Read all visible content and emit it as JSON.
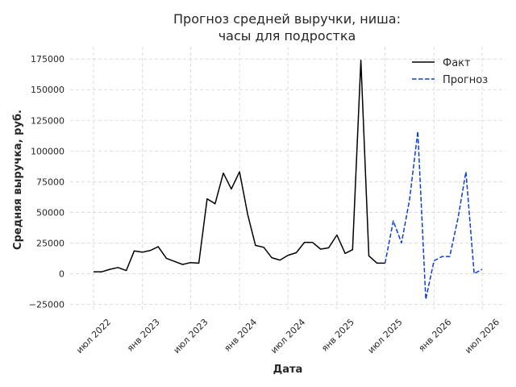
{
  "chart_data": {
    "type": "line",
    "title_lines": [
      "Прогноз средней выручки, ниша:",
      "часы для подростка"
    ],
    "xlabel": "Дата",
    "ylabel": "Средняя выручка, руб.",
    "ylim": [
      -30000,
      185000
    ],
    "y_ticks": [
      -25000,
      0,
      25000,
      50000,
      75000,
      100000,
      125000,
      150000,
      175000
    ],
    "y_tick_labels": [
      "−25000",
      "0",
      "25000",
      "50000",
      "75000",
      "100000",
      "125000",
      "150000",
      "175000"
    ],
    "x_ticks": [
      "2022-07",
      "2023-01",
      "2023-07",
      "2024-01",
      "2024-07",
      "2025-01",
      "2025-07",
      "2026-01",
      "2026-07"
    ],
    "x_tick_labels": [
      "июл 2022",
      "янв 2023",
      "июл 2023",
      "янв 2024",
      "июл 2024",
      "янв 2025",
      "июл 2025",
      "янв 2026",
      "июл 2026"
    ],
    "grid": true,
    "legend_position": "top-right",
    "series": [
      {
        "name": "Факт",
        "style": "solid",
        "color": "#000000",
        "x": [
          "2022-07",
          "2022-08",
          "2022-09",
          "2022-10",
          "2022-11",
          "2022-12",
          "2023-01",
          "2023-02",
          "2023-03",
          "2023-04",
          "2023-05",
          "2023-06",
          "2023-07",
          "2023-08",
          "2023-09",
          "2023-10",
          "2023-11",
          "2023-12",
          "2024-01",
          "2024-02",
          "2024-03",
          "2024-04",
          "2024-05",
          "2024-06",
          "2024-07",
          "2024-08",
          "2024-09",
          "2024-10",
          "2024-11",
          "2024-12",
          "2025-01",
          "2025-02",
          "2025-03",
          "2025-04",
          "2025-05",
          "2025-06",
          "2025-07"
        ],
        "y": [
          1500,
          1500,
          3500,
          5000,
          2500,
          18500,
          17500,
          19000,
          22000,
          12500,
          10000,
          7500,
          9000,
          8500,
          61000,
          57000,
          82000,
          69000,
          83000,
          48000,
          23000,
          21500,
          13000,
          11000,
          15000,
          17000,
          25500,
          25500,
          20000,
          21000,
          31500,
          16500,
          19500,
          174000,
          14500,
          8500,
          8500
        ]
      },
      {
        "name": "Прогноз",
        "style": "dashed",
        "color": "#0a3fd9",
        "x": [
          "2025-07",
          "2025-08",
          "2025-09",
          "2025-10",
          "2025-11",
          "2025-12",
          "2026-01",
          "2026-02",
          "2026-03",
          "2026-04",
          "2026-05",
          "2026-06",
          "2026-07"
        ],
        "y": [
          8500,
          43000,
          25000,
          60000,
          116000,
          -21000,
          10500,
          14000,
          14000,
          45000,
          83000,
          0,
          3500
        ]
      }
    ]
  }
}
